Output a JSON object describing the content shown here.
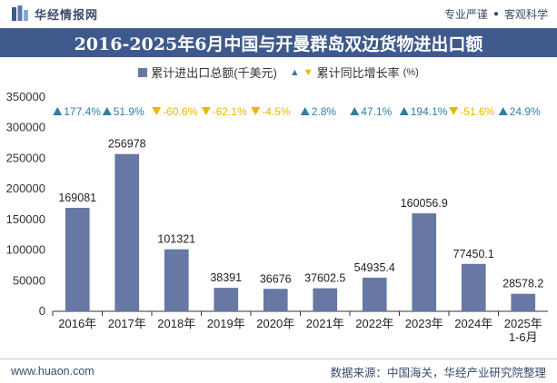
{
  "header": {
    "brand_name": "华经情报网",
    "slogan_left": "专业严谨",
    "slogan_sep": "●",
    "slogan_right": "客观科学"
  },
  "chart_data": {
    "type": "bar",
    "title": "2016-2025年6月中国与开曼群岛双边货物进出口额",
    "categories": [
      "2016年",
      "2017年",
      "2018年",
      "2019年",
      "2020年",
      "2021年",
      "2022年",
      "2023年",
      "2024年",
      "2025年\n1-6月"
    ],
    "series": [
      {
        "name": "累计进出口总额(千美元)",
        "values": [
          169081,
          256978,
          101321,
          38391,
          36676,
          37602.5,
          54935.4,
          160056.9,
          77450.1,
          28578.2
        ],
        "labels": [
          "169081",
          "256978",
          "101321",
          "38391",
          "36676",
          "37602.5",
          "54935.4",
          "160056.9",
          "77450.1",
          "28578.2"
        ],
        "color": "#6678a3"
      },
      {
        "name": "累计同比增长率",
        "unit": "(%)",
        "values": [
          177.4,
          51.9,
          -60.6,
          -62.1,
          -4.5,
          2.8,
          47.1,
          194.1,
          -51.6,
          24.9
        ],
        "labels": [
          "177.4%",
          "51.9%",
          "-60.6%",
          "-62.1%",
          "-4.5%",
          "2.8%",
          "47.1%",
          "194.1%",
          "-51.6%",
          "24.9%"
        ],
        "up_color": "#2e7ea5",
        "down_color": "#f2b400"
      }
    ],
    "yticks": [
      "0",
      "50000",
      "100000",
      "150000",
      "200000",
      "250000",
      "300000",
      "350000"
    ],
    "ylim": [
      0,
      350000
    ],
    "grid": false,
    "legend": "top-center"
  },
  "footer": {
    "website": "www.huaon.com",
    "source": "数据来源：中国海关，华经产业研究院整理"
  }
}
